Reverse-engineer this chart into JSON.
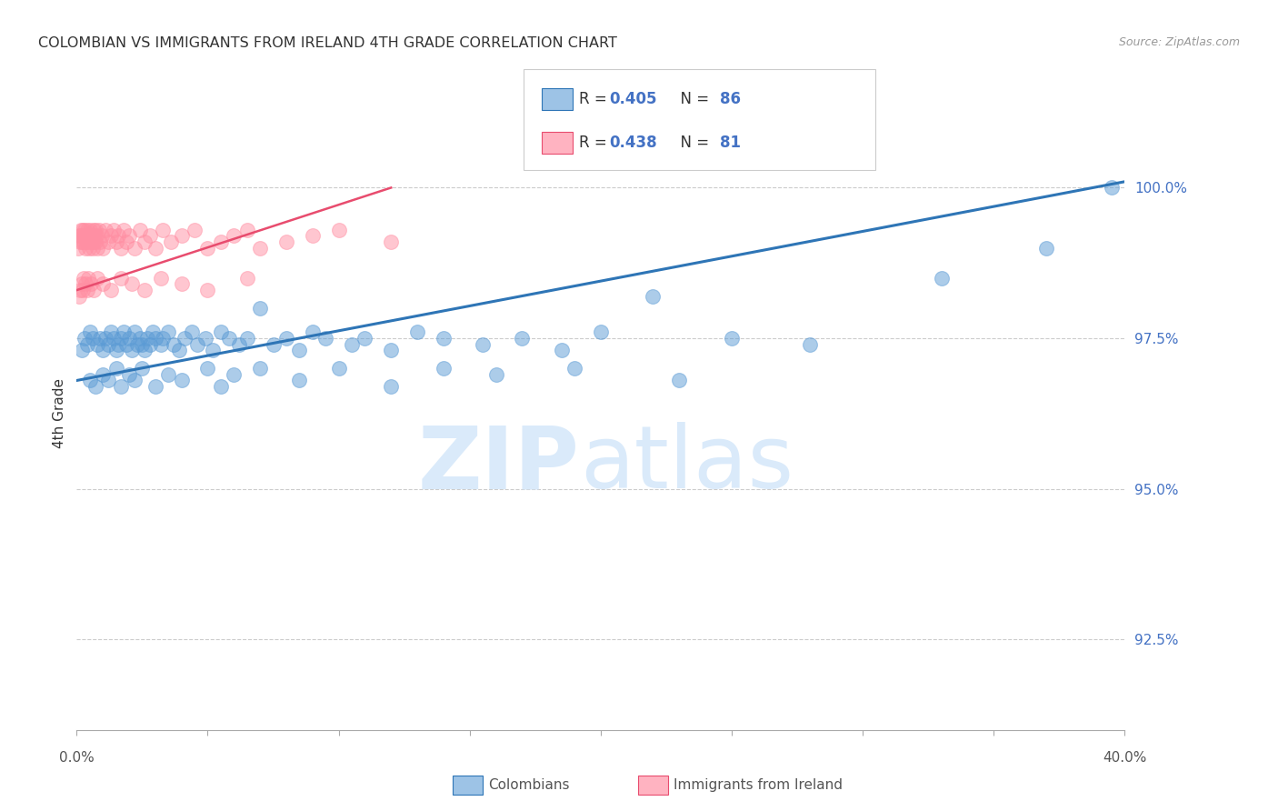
{
  "title": "COLOMBIAN VS IMMIGRANTS FROM IRELAND 4TH GRADE CORRELATION CHART",
  "source": "Source: ZipAtlas.com",
  "ylabel": "4th Grade",
  "y_ticks": [
    92.5,
    95.0,
    97.5,
    100.0
  ],
  "y_tick_labels": [
    "92.5%",
    "95.0%",
    "97.5%",
    "100.0%"
  ],
  "x_range": [
    0.0,
    40.0
  ],
  "y_range": [
    91.0,
    101.5
  ],
  "legend_blue_r": "R = 0.405",
  "legend_blue_n": "N = 86",
  "legend_pink_r": "R = 0.438",
  "legend_pink_n": "N = 81",
  "legend_col1": "Colombians",
  "legend_col2": "Immigrants from Ireland",
  "blue_color": "#5B9BD5",
  "pink_color": "#FF8FA3",
  "blue_line_color": "#2E75B6",
  "pink_line_color": "#E84C6E",
  "blue_swatch_color": "#9DC3E6",
  "pink_swatch_color": "#FFB3C1",
  "blue_scatter_x": [
    0.2,
    0.3,
    0.4,
    0.5,
    0.6,
    0.8,
    0.9,
    1.0,
    1.1,
    1.2,
    1.3,
    1.4,
    1.5,
    1.6,
    1.7,
    1.8,
    1.9,
    2.0,
    2.1,
    2.2,
    2.3,
    2.4,
    2.5,
    2.6,
    2.7,
    2.8,
    2.9,
    3.0,
    3.2,
    3.3,
    3.5,
    3.7,
    3.9,
    4.1,
    4.4,
    4.6,
    4.9,
    5.2,
    5.5,
    5.8,
    6.2,
    6.5,
    7.0,
    7.5,
    8.0,
    8.5,
    9.0,
    9.5,
    10.5,
    11.0,
    12.0,
    13.0,
    14.0,
    15.5,
    17.0,
    18.5,
    20.0,
    22.0,
    25.0,
    28.0,
    33.0,
    37.0,
    39.5,
    0.5,
    0.7,
    1.0,
    1.2,
    1.5,
    1.7,
    2.0,
    2.2,
    2.5,
    3.0,
    3.5,
    4.0,
    5.0,
    5.5,
    6.0,
    7.0,
    8.5,
    10.0,
    12.0,
    14.0,
    16.0,
    19.0,
    23.0
  ],
  "blue_scatter_y": [
    97.3,
    97.5,
    97.4,
    97.6,
    97.5,
    97.4,
    97.5,
    97.3,
    97.5,
    97.4,
    97.6,
    97.5,
    97.3,
    97.4,
    97.5,
    97.6,
    97.4,
    97.5,
    97.3,
    97.6,
    97.4,
    97.5,
    97.4,
    97.3,
    97.5,
    97.4,
    97.6,
    97.5,
    97.4,
    97.5,
    97.6,
    97.4,
    97.3,
    97.5,
    97.6,
    97.4,
    97.5,
    97.3,
    97.6,
    97.5,
    97.4,
    97.5,
    98.0,
    97.4,
    97.5,
    97.3,
    97.6,
    97.5,
    97.4,
    97.5,
    97.3,
    97.6,
    97.5,
    97.4,
    97.5,
    97.3,
    97.6,
    98.2,
    97.5,
    97.4,
    98.5,
    99.0,
    100.0,
    96.8,
    96.7,
    96.9,
    96.8,
    97.0,
    96.7,
    96.9,
    96.8,
    97.0,
    96.7,
    96.9,
    96.8,
    97.0,
    96.7,
    96.9,
    97.0,
    96.8,
    97.0,
    96.7,
    97.0,
    96.9,
    97.0,
    96.8
  ],
  "pink_scatter_x": [
    0.05,
    0.1,
    0.12,
    0.15,
    0.17,
    0.2,
    0.22,
    0.25,
    0.28,
    0.3,
    0.33,
    0.35,
    0.38,
    0.4,
    0.42,
    0.45,
    0.48,
    0.5,
    0.52,
    0.55,
    0.58,
    0.6,
    0.63,
    0.65,
    0.68,
    0.7,
    0.73,
    0.75,
    0.8,
    0.85,
    0.9,
    0.95,
    1.0,
    1.1,
    1.2,
    1.3,
    1.4,
    1.5,
    1.6,
    1.7,
    1.8,
    1.9,
    2.0,
    2.2,
    2.4,
    2.6,
    2.8,
    3.0,
    3.3,
    3.6,
    4.0,
    4.5,
    5.0,
    5.5,
    6.0,
    6.5,
    7.0,
    8.0,
    9.0,
    10.0,
    12.0,
    0.08,
    0.13,
    0.18,
    0.23,
    0.28,
    0.33,
    0.4,
    0.45,
    0.55,
    0.65,
    0.8,
    1.0,
    1.3,
    1.7,
    2.1,
    2.6,
    3.2,
    4.0,
    5.0,
    6.5
  ],
  "pink_scatter_y": [
    99.0,
    99.2,
    99.1,
    99.3,
    99.2,
    99.1,
    99.3,
    99.2,
    99.1,
    99.3,
    99.2,
    99.0,
    99.1,
    99.2,
    99.3,
    99.1,
    99.0,
    99.2,
    99.3,
    99.1,
    99.2,
    99.0,
    99.3,
    99.1,
    99.2,
    99.3,
    99.1,
    99.2,
    99.0,
    99.3,
    99.1,
    99.2,
    99.0,
    99.3,
    99.1,
    99.2,
    99.3,
    99.1,
    99.2,
    99.0,
    99.3,
    99.1,
    99.2,
    99.0,
    99.3,
    99.1,
    99.2,
    99.0,
    99.3,
    99.1,
    99.2,
    99.3,
    99.0,
    99.1,
    99.2,
    99.3,
    99.0,
    99.1,
    99.2,
    99.3,
    99.1,
    98.2,
    98.3,
    98.4,
    98.3,
    98.5,
    98.4,
    98.3,
    98.5,
    98.4,
    98.3,
    98.5,
    98.4,
    98.3,
    98.5,
    98.4,
    98.3,
    98.5,
    98.4,
    98.3,
    98.5
  ],
  "blue_line_x": [
    0.0,
    40.0
  ],
  "blue_line_y": [
    96.8,
    100.1
  ],
  "pink_line_x": [
    0.0,
    12.0
  ],
  "pink_line_y": [
    98.3,
    100.0
  ]
}
